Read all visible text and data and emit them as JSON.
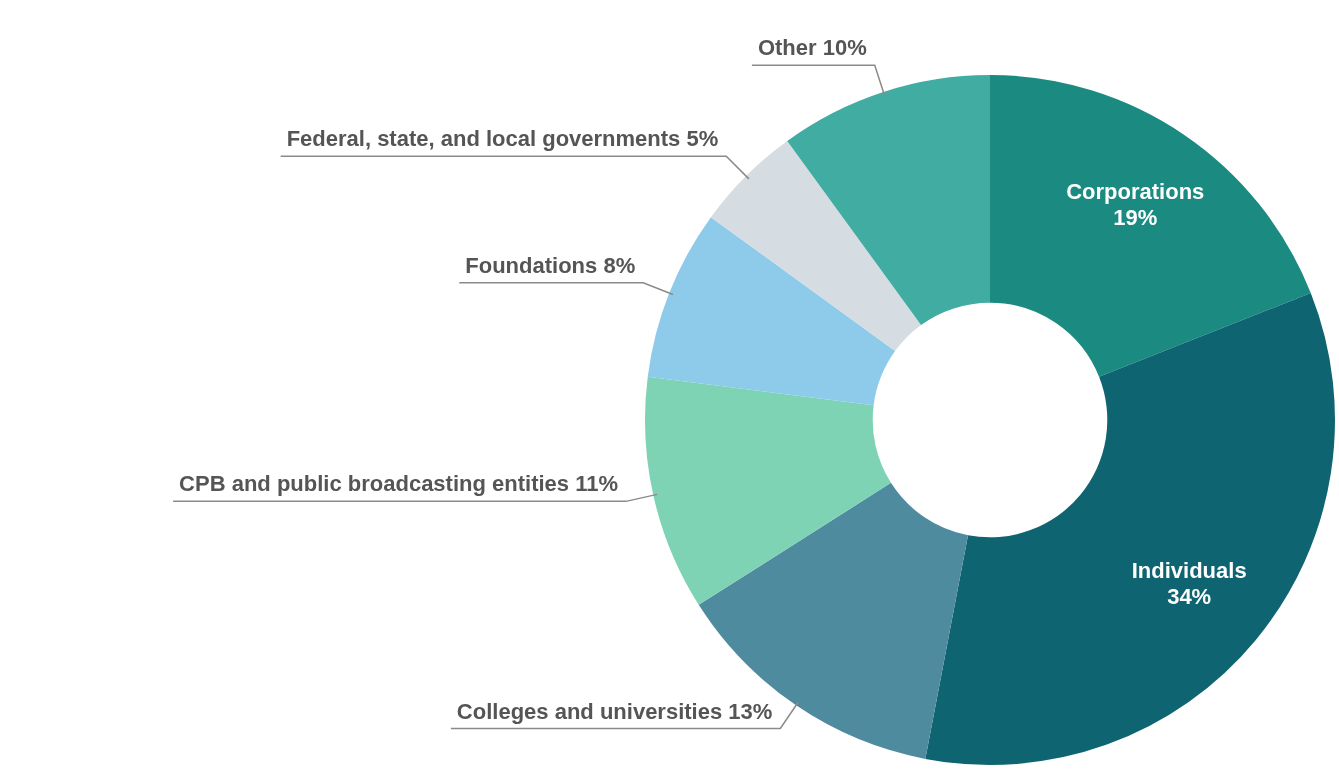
{
  "chart_data": {
    "type": "donut",
    "categories": [
      "Corporations",
      "Individuals",
      "Colleges and universities",
      "CPB and public broadcasting entities",
      "Foundations",
      "Federal, state, and local governments",
      "Other"
    ],
    "values": [
      19,
      34,
      13,
      11,
      8,
      5,
      10
    ],
    "value_labels": [
      "19%",
      "34%",
      "13%",
      "11%",
      "8%",
      "5%",
      "10%"
    ],
    "colors": [
      "#1b8a80",
      "#0f6471",
      "#4f8b9f",
      "#7dd3b4",
      "#8ecbea",
      "#d5dde3",
      "#41aca2"
    ],
    "legend": false
  }
}
